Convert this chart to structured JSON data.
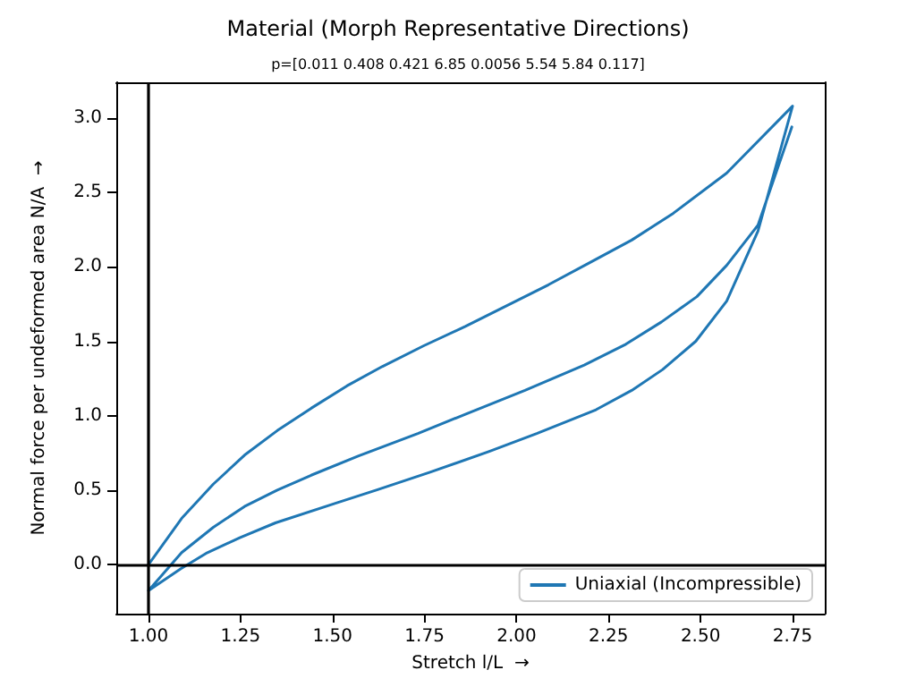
{
  "chart_data": {
    "type": "line",
    "title": "Material (Morph Representative Directions)",
    "subtitle": "p=[0.011 0.408 0.421 6.85 0.0056 5.54 5.84 0.117]",
    "xlabel": "Stretch l/L  →",
    "ylabel": "Normal force per undeformed area N/A  →",
    "series": [
      {
        "name": "Uniaxial (Incompressible)",
        "color": "#1f77b4",
        "x": [
          1.0,
          1.09,
          1.176,
          1.261,
          1.35,
          1.442,
          1.539,
          1.635,
          1.748,
          1.861,
          1.974,
          2.087,
          2.2,
          2.313,
          2.426,
          2.571,
          2.75,
          2.656,
          2.571,
          2.487,
          2.397,
          2.313,
          2.216,
          2.055,
          1.926,
          1.765,
          1.619,
          1.506,
          1.345,
          1.248,
          1.16,
          1.087,
          1.0,
          1.09,
          1.176,
          1.261,
          1.35,
          1.442,
          1.571,
          1.732,
          1.861,
          2.023,
          2.184,
          2.297,
          2.394,
          2.49,
          2.571,
          2.656,
          2.748
        ],
        "values": [
          0,
          0.31,
          0.54,
          0.735,
          0.9,
          1.05,
          1.2,
          1.33,
          1.47,
          1.6,
          1.74,
          1.88,
          2.03,
          2.18,
          2.36,
          2.63,
          3.08,
          2.24,
          1.77,
          1.5,
          1.31,
          1.17,
          1.04,
          0.88,
          0.76,
          0.62,
          0.5,
          0.41,
          0.28,
          0.18,
          0.08,
          -0.03,
          -0.175,
          0.08,
          0.25,
          0.39,
          0.5,
          0.6,
          0.73,
          0.88,
          1.01,
          1.17,
          1.34,
          1.48,
          1.63,
          1.8,
          2.01,
          2.28,
          2.94
        ]
      }
    ],
    "xlim": [
      0.9125,
      2.8375
    ],
    "xticks": [
      {
        "value": 1,
        "label": "1.00"
      },
      {
        "value": 1.25,
        "label": "1.25"
      },
      {
        "value": 1.5,
        "label": "1.50"
      },
      {
        "value": 1.75,
        "label": "1.75"
      },
      {
        "value": 2,
        "label": "2.00"
      },
      {
        "value": 2.25,
        "label": "2.25"
      },
      {
        "value": 2.5,
        "label": "2.50"
      },
      {
        "value": 2.75,
        "label": "2.75"
      }
    ],
    "ylim": [
      -0.33,
      3.24
    ],
    "yticks": [
      {
        "value": 0,
        "label": "0.0"
      },
      {
        "value": 0.5,
        "label": "0.5"
      },
      {
        "value": 1,
        "label": "1.0"
      },
      {
        "value": 1.5,
        "label": "1.5"
      },
      {
        "value": 2,
        "label": "2.0"
      },
      {
        "value": 2.5,
        "label": "2.5"
      },
      {
        "value": 3,
        "label": "3.0"
      }
    ],
    "ref_lines": [
      {
        "axis": "x",
        "value": 1,
        "color": "#000000"
      },
      {
        "axis": "y",
        "value": 0,
        "color": "#000000"
      }
    ],
    "grid": false,
    "legend": "bottom right",
    "marker": "none",
    "line_style": "solid"
  }
}
